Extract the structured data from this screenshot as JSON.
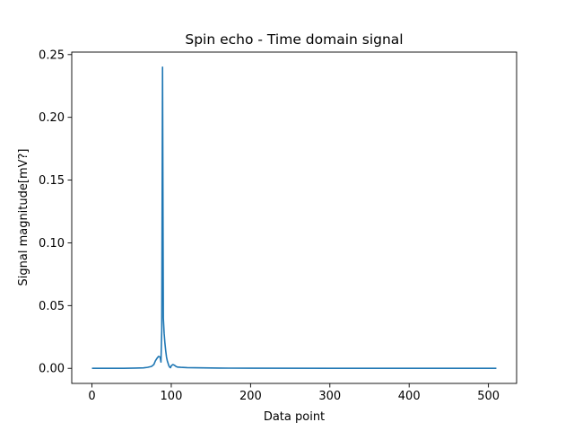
{
  "chart_data": {
    "type": "line",
    "title": "Spin echo - Time domain signal",
    "xlabel": "Data point",
    "ylabel": "Signal magnitude[mV?]",
    "xlim": [
      -25.5,
      535.5
    ],
    "ylim": [
      -0.012,
      0.252
    ],
    "xticks": [
      0,
      100,
      200,
      300,
      400,
      500
    ],
    "xtick_labels": [
      "0",
      "100",
      "200",
      "300",
      "400",
      "500"
    ],
    "yticks": [
      0.0,
      0.05,
      0.1,
      0.15,
      0.2,
      0.25
    ],
    "ytick_labels": [
      "0.00",
      "0.05",
      "0.10",
      "0.15",
      "0.20",
      "0.25"
    ],
    "grid": false,
    "series": [
      {
        "color": "#1f77b4",
        "points": [
          [
            0,
            0.0
          ],
          [
            20,
            0.0
          ],
          [
            40,
            0.0
          ],
          [
            55,
            0.0002
          ],
          [
            65,
            0.0004
          ],
          [
            70,
            0.0008
          ],
          [
            75,
            0.0015
          ],
          [
            78,
            0.003
          ],
          [
            80,
            0.006
          ],
          [
            82,
            0.008
          ],
          [
            84,
            0.0095
          ],
          [
            86,
            0.009
          ],
          [
            87,
            0.005
          ],
          [
            88,
            0.03
          ],
          [
            89,
            0.24
          ],
          [
            90,
            0.04
          ],
          [
            91,
            0.028
          ],
          [
            92,
            0.02
          ],
          [
            93,
            0.014
          ],
          [
            94,
            0.009
          ],
          [
            95,
            0.006
          ],
          [
            96,
            0.004
          ],
          [
            97,
            0.002
          ],
          [
            98,
            0.001
          ],
          [
            99,
            0.0005
          ],
          [
            100,
            0.002
          ],
          [
            102,
            0.003
          ],
          [
            104,
            0.0025
          ],
          [
            106,
            0.0015
          ],
          [
            108,
            0.001
          ],
          [
            112,
            0.0008
          ],
          [
            120,
            0.0006
          ],
          [
            140,
            0.0004
          ],
          [
            160,
            0.0002
          ],
          [
            200,
            0.0001
          ],
          [
            300,
            0.0
          ],
          [
            400,
            0.0
          ],
          [
            510,
            0.0
          ]
        ]
      }
    ]
  }
}
